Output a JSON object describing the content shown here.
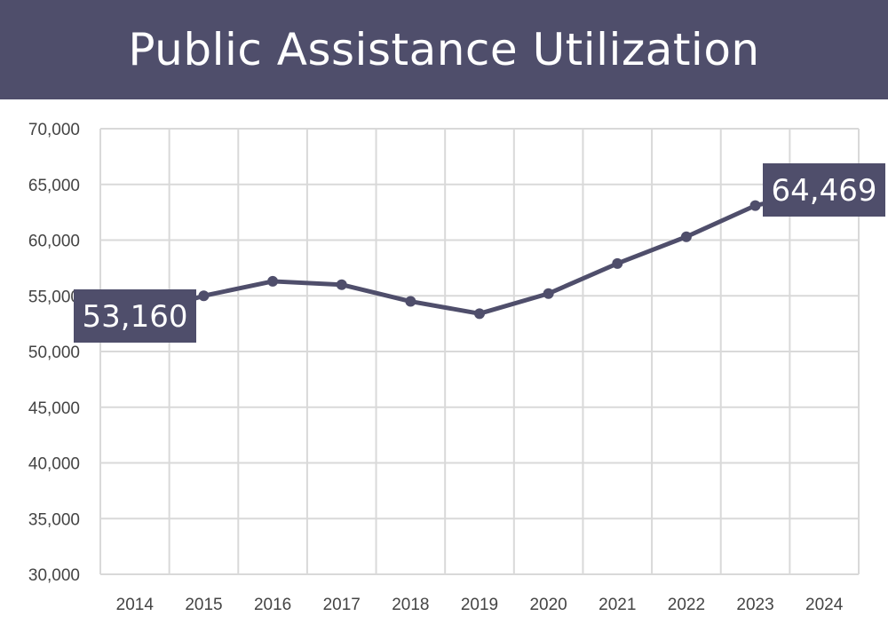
{
  "colors": {
    "header_bg": "#4f4e6b",
    "line": "#4f4e6b",
    "grid": "#d9d9d9",
    "callout_bg": "#4f4e6b",
    "callout_text": "#ffffff",
    "tick_text": "#444444"
  },
  "chart_data": {
    "type": "line",
    "title": "Public Assistance Utilization",
    "xlabel": "",
    "ylabel": "",
    "categories": [
      "2014",
      "2015",
      "2016",
      "2017",
      "2018",
      "2019",
      "2020",
      "2021",
      "2022",
      "2023",
      "2024"
    ],
    "series": [
      {
        "values": [
          53160,
          55000,
          56300,
          56000,
          54500,
          53400,
          55200,
          57900,
          60300,
          63100,
          64469
        ]
      }
    ],
    "ylim": [
      30000,
      70000
    ],
    "yticks": [
      30000,
      35000,
      40000,
      45000,
      50000,
      55000,
      60000,
      65000,
      70000
    ],
    "ytick_labels": [
      "30,000",
      "35,000",
      "40,000",
      "45,000",
      "50,000",
      "55,000",
      "60,000",
      "65,000",
      "70,000"
    ],
    "grid": true,
    "legend": "none",
    "annotations": [
      {
        "text": "53,160",
        "category": "2014"
      },
      {
        "text": "64,469",
        "category": "2024"
      }
    ]
  }
}
